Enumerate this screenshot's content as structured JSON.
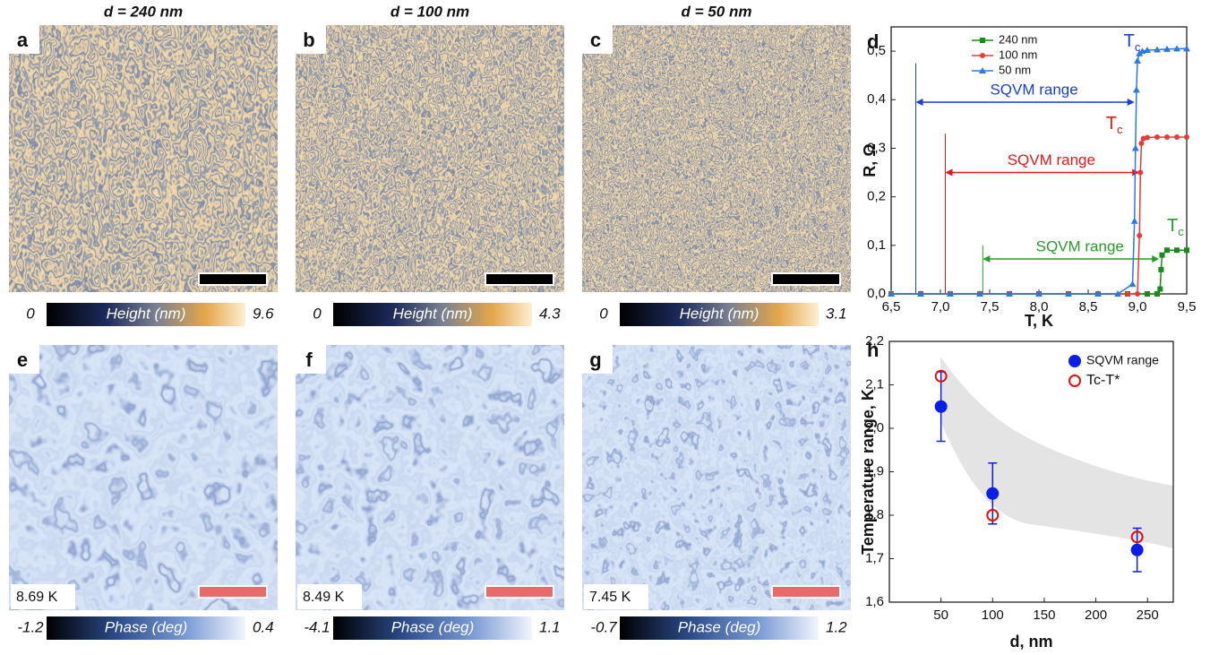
{
  "panel_headers": [
    "d = 240 nm",
    "d = 100 nm",
    "d = 50 nm"
  ],
  "height_panels": [
    {
      "letter": "a",
      "scale_min": "0",
      "scale_label": "Height (nm)",
      "scale_max": "9.6"
    },
    {
      "letter": "b",
      "scale_min": "0",
      "scale_label": "Height (nm)",
      "scale_max": "4.3"
    },
    {
      "letter": "c",
      "scale_min": "0",
      "scale_label": "Height (nm)",
      "scale_max": "3.1"
    }
  ],
  "phase_panels": [
    {
      "letter": "e",
      "temperature": "8.69 K",
      "scale_min": "-1.2",
      "scale_label": "Phase (deg)",
      "scale_max": "0.4"
    },
    {
      "letter": "f",
      "temperature": "8.49 K",
      "scale_min": "-4.1",
      "scale_label": "Phase (deg)",
      "scale_max": "1.1"
    },
    {
      "letter": "g",
      "temperature": "7.45 K",
      "scale_min": "-0.7",
      "scale_label": "Phase (deg)",
      "scale_max": "1.2"
    }
  ],
  "chart_data": [
    {
      "type": "line",
      "letter": "d",
      "x_label": "T, K",
      "y_label": "R, Ω",
      "xlim": [
        6.5,
        9.5
      ],
      "ylim": [
        0,
        0.55
      ],
      "xticks": [
        {
          "value": 6.5,
          "label": "6,5"
        },
        {
          "value": 7.0,
          "label": "7,0"
        },
        {
          "value": 7.5,
          "label": "7,5"
        },
        {
          "value": 8.0,
          "label": "8,0"
        },
        {
          "value": 8.5,
          "label": "8,5"
        },
        {
          "value": 9.0,
          "label": "9,0"
        },
        {
          "value": 9.5,
          "label": "9,5"
        }
      ],
      "yticks": [
        {
          "value": 0,
          "label": "0,0"
        },
        {
          "value": 0.1,
          "label": "0,1"
        },
        {
          "value": 0.2,
          "label": "0,2"
        },
        {
          "value": 0.3,
          "label": "0,3"
        },
        {
          "value": 0.4,
          "label": "0,4"
        },
        {
          "value": 0.5,
          "label": "0,5"
        }
      ],
      "legend": "upper left",
      "series": [
        {
          "name": "240 nm",
          "color": "#1a8a1a",
          "marker": "square",
          "x": [
            6.5,
            6.8,
            7.1,
            7.4,
            7.7,
            8.0,
            8.3,
            8.6,
            8.9,
            9.1,
            9.2,
            9.23,
            9.24,
            9.25,
            9.3,
            9.4,
            9.5
          ],
          "values": [
            0,
            0,
            0,
            0,
            0,
            0,
            0,
            0,
            0,
            0,
            0,
            0.01,
            0.05,
            0.08,
            0.09,
            0.09,
            0.09
          ]
        },
        {
          "name": "100 nm",
          "color": "#e83a3a",
          "marker": "circle",
          "x": [
            6.5,
            6.8,
            7.1,
            7.4,
            7.7,
            8.0,
            8.3,
            8.6,
            8.9,
            9.0,
            9.02,
            9.03,
            9.04,
            9.06,
            9.1,
            9.2,
            9.3,
            9.4,
            9.5
          ],
          "values": [
            0,
            0,
            0,
            0,
            0,
            0,
            0,
            0,
            0,
            0,
            0.12,
            0.25,
            0.31,
            0.32,
            0.322,
            0.323,
            0.323,
            0.323,
            0.323
          ]
        },
        {
          "name": "50 nm",
          "color": "#2a7ae0",
          "marker": "triangle",
          "x": [
            6.5,
            6.8,
            7.1,
            7.4,
            7.7,
            8.0,
            8.3,
            8.6,
            8.8,
            8.95,
            8.97,
            8.98,
            8.99,
            9.0,
            9.02,
            9.05,
            9.1,
            9.2,
            9.3,
            9.4,
            9.5
          ],
          "values": [
            0,
            0,
            0,
            0,
            0,
            0,
            0,
            0,
            0,
            0.02,
            0.15,
            0.3,
            0.42,
            0.48,
            0.495,
            0.5,
            0.502,
            0.503,
            0.504,
            0.505,
            0.505
          ]
        }
      ],
      "ranges": [
        {
          "label": "SQVM range",
          "color": "#1a3fd6",
          "x0": 6.75,
          "x1": 8.97,
          "y": 0.395,
          "marker_top": 0.475
        },
        {
          "label": "SQVM range",
          "color": "#e01818",
          "x0": 7.05,
          "x1": 9.02,
          "y": 0.25,
          "marker_top": 0.33
        },
        {
          "label": "SQVM range",
          "color": "#2a9a2a",
          "x0": 7.43,
          "x1": 9.22,
          "y": 0.072,
          "marker_top": 0.1
        }
      ],
      "tc_labels": [
        {
          "text": "T",
          "sub": "c",
          "color": "#1a3fd6",
          "x": 8.86,
          "y": 0.5
        },
        {
          "text": "T",
          "sub": "c",
          "color": "#e01818",
          "x": 8.68,
          "y": 0.33
        },
        {
          "text": "T",
          "sub": "c",
          "color": "#2a9a2a",
          "x": 9.3,
          "y": 0.12
        }
      ]
    },
    {
      "type": "scatter",
      "letter": "h",
      "x_label": "d, nm",
      "y_label": "Temperature range, K",
      "xlim": [
        0,
        275
      ],
      "ylim": [
        1.6,
        2.2
      ],
      "xticks": [
        50,
        100,
        150,
        200,
        250
      ],
      "yticks": [
        {
          "value": 1.6,
          "label": "1,6"
        },
        {
          "value": 1.7,
          "label": "1,7"
        },
        {
          "value": 1.8,
          "label": "1,8"
        },
        {
          "value": 1.9,
          "label": "1,9"
        },
        {
          "value": 2.0,
          "label": "2,0"
        },
        {
          "value": 2.1,
          "label": "2,1"
        },
        {
          "value": 2.2,
          "label": "2,2"
        }
      ],
      "legend": "upper right",
      "series": [
        {
          "name": "SQVM range",
          "color": "#0a1ee6",
          "marker": "filled-circle",
          "x": [
            50,
            100,
            240
          ],
          "values": [
            2.05,
            1.85,
            1.72
          ],
          "errors": [
            0.08,
            0.07,
            0.05
          ]
        },
        {
          "name": "Tc-T*",
          "color": "#e01010",
          "marker": "open-circle",
          "x": [
            50,
            100,
            240
          ],
          "values": [
            2.12,
            1.8,
            1.75
          ]
        }
      ]
    }
  ]
}
